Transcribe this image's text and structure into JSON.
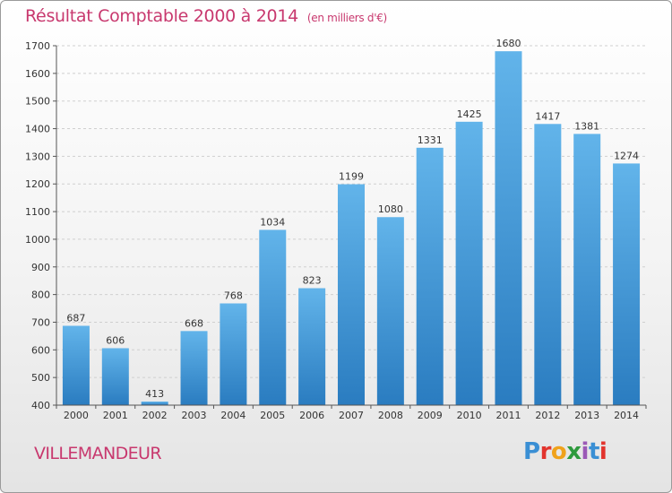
{
  "header": {
    "title": "Résultat Comptable 2000 à 2014",
    "subtitle": "(en milliers d'€)"
  },
  "footer": {
    "place": "VILLEMANDEUR",
    "logo_text": "Proxiti",
    "logo_colors": [
      "#3a8fd4",
      "#e2342d",
      "#f0a21b",
      "#2e9a3d",
      "#9b59b6",
      "#3a8fd4",
      "#e2342d"
    ]
  },
  "colors": {
    "bar_light": "#62b4ea",
    "bar_dark": "#2a7cc0",
    "title": "#c8386e",
    "grid": "#cfcfcf"
  },
  "chart_data": {
    "type": "bar",
    "title": "Résultat Comptable 2000 à 2014",
    "subtitle": "(en milliers d'€)",
    "xlabel": "",
    "ylabel": "",
    "categories": [
      "2000",
      "2001",
      "2002",
      "2003",
      "2004",
      "2005",
      "2006",
      "2007",
      "2008",
      "2009",
      "2010",
      "2011",
      "2012",
      "2013",
      "2014"
    ],
    "values": [
      687,
      606,
      413,
      668,
      768,
      1034,
      823,
      1199,
      1080,
      1331,
      1425,
      1680,
      1417,
      1381,
      1274
    ],
    "ylim": [
      400,
      1700
    ],
    "yticks": [
      400,
      500,
      600,
      700,
      800,
      900,
      1000,
      1100,
      1200,
      1300,
      1400,
      1500,
      1600,
      1700
    ],
    "grid": true,
    "data_labels": true
  }
}
